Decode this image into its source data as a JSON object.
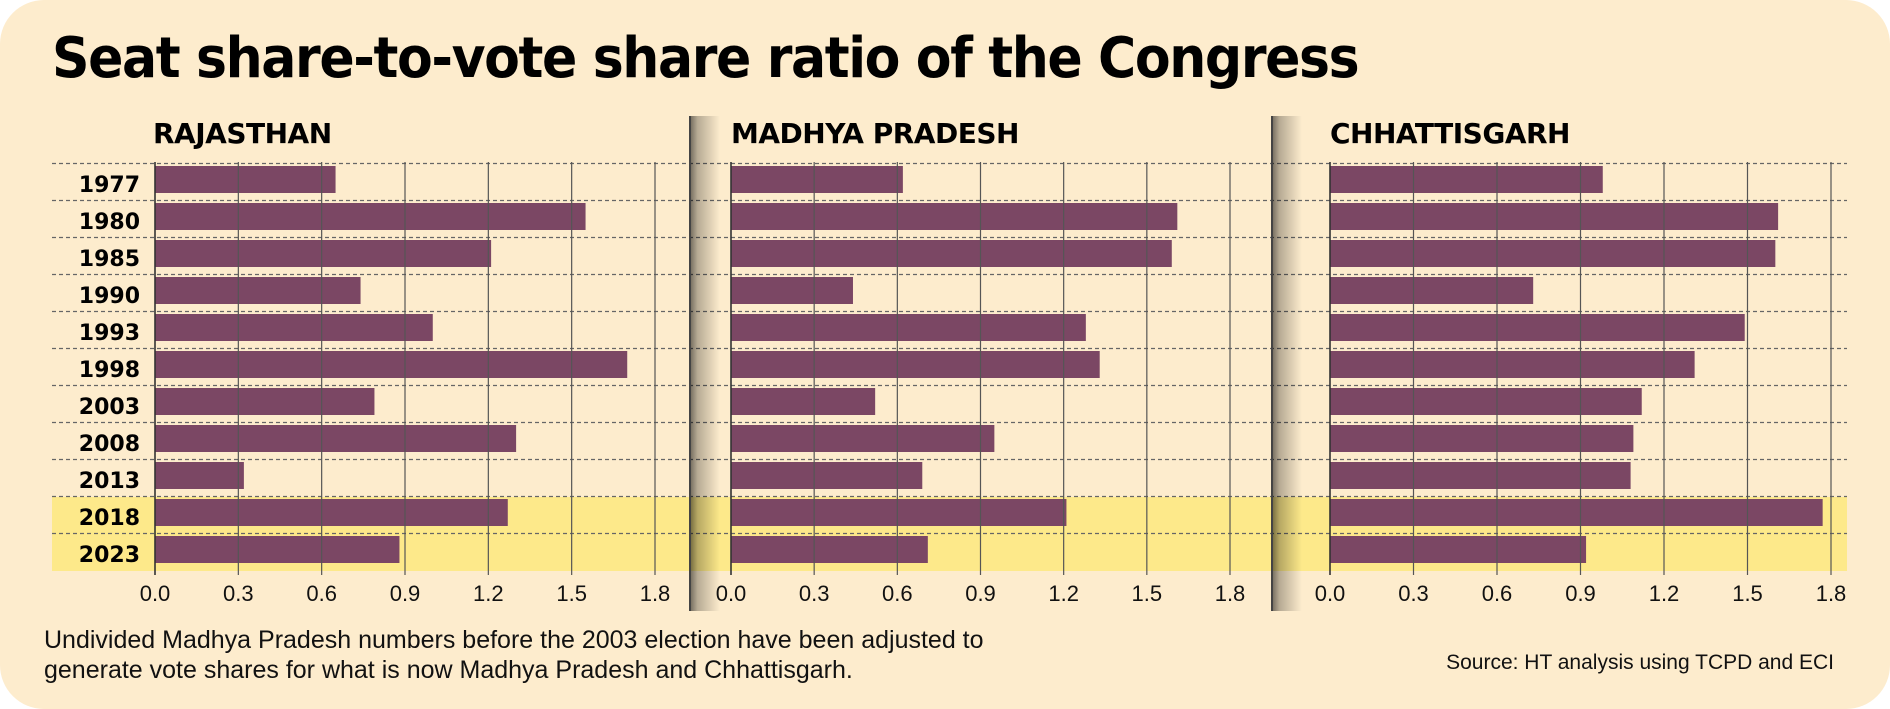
{
  "title": "Seat share-to-vote share ratio of the Congress",
  "footnote": [
    "Undivided Madhya Pradesh numbers before the 2003 election have been adjusted to",
    "generate vote shares for what is now Madhya Pradesh and Chhattisgarh."
  ],
  "source": "Source: HT analysis using TCPD and ECI",
  "colors": {
    "bar": "#7b4764",
    "highlight": "#fde98a",
    "background": "#fdeccd",
    "grid": "#555555"
  },
  "chart_data": [
    {
      "type": "bar",
      "orientation": "horizontal",
      "title": "RAJASTHAN",
      "categories": [
        "1977",
        "1980",
        "1985",
        "1990",
        "1993",
        "1998",
        "2003",
        "2008",
        "2013",
        "2018",
        "2023"
      ],
      "values": [
        0.65,
        1.55,
        1.21,
        0.74,
        1.0,
        1.7,
        0.79,
        1.3,
        0.32,
        1.27,
        0.88
      ],
      "xlim": [
        0,
        1.8
      ],
      "ticks": [
        "0.0",
        "0.3",
        "0.6",
        "0.9",
        "1.2",
        "1.5",
        "1.8"
      ],
      "highlighted_categories": [
        "2018",
        "2023"
      ]
    },
    {
      "type": "bar",
      "orientation": "horizontal",
      "title": "MADHYA PRADESH",
      "categories": [
        "1977",
        "1980",
        "1985",
        "1990",
        "1993",
        "1998",
        "2003",
        "2008",
        "2013",
        "2018",
        "2023"
      ],
      "values": [
        0.62,
        1.61,
        1.59,
        0.44,
        1.28,
        1.33,
        0.52,
        0.95,
        0.69,
        1.21,
        0.71
      ],
      "xlim": [
        0,
        1.8
      ],
      "ticks": [
        "0.0",
        "0.3",
        "0.6",
        "0.9",
        "1.2",
        "1.5",
        "1.8"
      ],
      "highlighted_categories": [
        "2018",
        "2023"
      ]
    },
    {
      "type": "bar",
      "orientation": "horizontal",
      "title": "CHHATTISGARH",
      "categories": [
        "1977",
        "1980",
        "1985",
        "1990",
        "1993",
        "1998",
        "2003",
        "2008",
        "2013",
        "2018",
        "2023"
      ],
      "values": [
        0.98,
        1.61,
        1.6,
        0.73,
        1.49,
        1.31,
        1.12,
        1.09,
        1.08,
        1.77,
        0.92
      ],
      "xlim": [
        0,
        1.8
      ],
      "ticks": [
        "0.0",
        "0.3",
        "0.6",
        "0.9",
        "1.2",
        "1.5",
        "1.8"
      ],
      "highlighted_categories": [
        "2018",
        "2023"
      ]
    }
  ]
}
